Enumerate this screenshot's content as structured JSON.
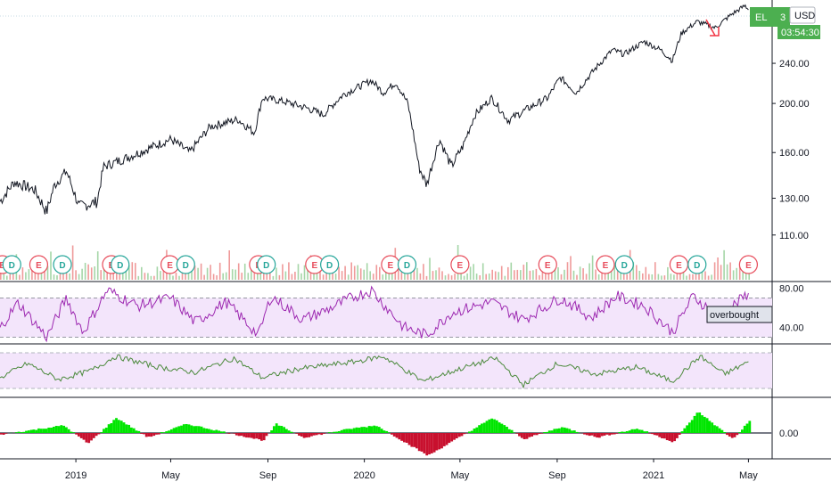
{
  "symbol_tag": "EL",
  "symbol_tag_extra": "3",
  "currency_label": "USD",
  "countdown": "03:54:30",
  "overbought_label": "overbought",
  "colors": {
    "price": "#131722",
    "rsi": "#9c27b0",
    "rsi_band": "#f3e5fb",
    "osc2": "#4c8a3d",
    "up_hist": "#00e600",
    "down_hist": "#c8102e",
    "badge_green": "#4caf50",
    "earnings": "#e74c5b",
    "dividend": "#26a69a",
    "arrow": "#f23645"
  },
  "chart_data": [
    {
      "type": "line",
      "series": [
        {
          "values": [
            {
              "x": "2018-09-27",
              "y": 128
            },
            {
              "x": "2018-10-15",
              "y": 140
            },
            {
              "x": "2018-11-10",
              "y": 135
            },
            {
              "x": "2018-11-25",
              "y": 122
            },
            {
              "x": "2018-12-05",
              "y": 138
            },
            {
              "x": "2018-12-20",
              "y": 147
            },
            {
              "x": "2019-01-05",
              "y": 125
            },
            {
              "x": "2019-01-28",
              "y": 128
            },
            {
              "x": "2019-02-05",
              "y": 150
            },
            {
              "x": "2019-03-10",
              "y": 157
            },
            {
              "x": "2019-04-15",
              "y": 166
            },
            {
              "x": "2019-05-01",
              "y": 170
            },
            {
              "x": "2019-05-25",
              "y": 160
            },
            {
              "x": "2019-06-20",
              "y": 180
            },
            {
              "x": "2019-07-25",
              "y": 186
            },
            {
              "x": "2019-08-15",
              "y": 175
            },
            {
              "x": "2019-08-25",
              "y": 205
            },
            {
              "x": "2019-09-20",
              "y": 202
            },
            {
              "x": "2019-10-20",
              "y": 196
            },
            {
              "x": "2019-11-10",
              "y": 190
            },
            {
              "x": "2019-12-05",
              "y": 208
            },
            {
              "x": "2020-01-10",
              "y": 222
            },
            {
              "x": "2020-01-25",
              "y": 210
            },
            {
              "x": "2020-02-10",
              "y": 220
            },
            {
              "x": "2020-02-25",
              "y": 200
            },
            {
              "x": "2020-03-10",
              "y": 150
            },
            {
              "x": "2020-03-20",
              "y": 138
            },
            {
              "x": "2020-04-05",
              "y": 170
            },
            {
              "x": "2020-04-20",
              "y": 150
            },
            {
              "x": "2020-05-05",
              "y": 165
            },
            {
              "x": "2020-05-20",
              "y": 190
            },
            {
              "x": "2020-06-10",
              "y": 205
            },
            {
              "x": "2020-07-01",
              "y": 185
            },
            {
              "x": "2020-07-25",
              "y": 195
            },
            {
              "x": "2020-08-20",
              "y": 205
            },
            {
              "x": "2020-09-05",
              "y": 225
            },
            {
              "x": "2020-09-25",
              "y": 210
            },
            {
              "x": "2020-10-20",
              "y": 235
            },
            {
              "x": "2020-11-10",
              "y": 255
            },
            {
              "x": "2020-11-25",
              "y": 250
            },
            {
              "x": "2020-12-20",
              "y": 265
            },
            {
              "x": "2021-01-10",
              "y": 255
            },
            {
              "x": "2021-01-25",
              "y": 243
            },
            {
              "x": "2021-02-05",
              "y": 275
            },
            {
              "x": "2021-02-25",
              "y": 290
            },
            {
              "x": "2021-03-20",
              "y": 282
            },
            {
              "x": "2021-04-10",
              "y": 300
            },
            {
              "x": "2021-04-27",
              "y": 312
            },
            {
              "x": "2021-05-01",
              "y": 306
            }
          ]
        }
      ],
      "x_ticks": [
        {
          "x": "2019-01-01",
          "label": "2019"
        },
        {
          "x": "2019-05-01",
          "label": "May"
        },
        {
          "x": "2019-09-01",
          "label": "Sep"
        },
        {
          "x": "2020-01-01",
          "label": "2020"
        },
        {
          "x": "2020-05-01",
          "label": "May"
        },
        {
          "x": "2020-09-01",
          "label": "Sep"
        },
        {
          "x": "2021-01-01",
          "label": "2021"
        },
        {
          "x": "2021-05-01",
          "label": "May"
        }
      ],
      "y_ticks": [
        "110.00",
        "130.00",
        "160.00",
        "200.00",
        "240.00"
      ],
      "log_scale": true,
      "xlim": [
        "2018-09-27",
        "2021-05-31"
      ],
      "ylim": [
        95,
        320
      ]
    },
    {
      "type": "line",
      "series": [
        {
          "values": [
            {
              "x": "2018-09-27",
              "y": 40
            },
            {
              "x": "2018-10-20",
              "y": 65
            },
            {
              "x": "2018-11-25",
              "y": 30
            },
            {
              "x": "2018-12-20",
              "y": 70
            },
            {
              "x": "2019-01-10",
              "y": 35
            },
            {
              "x": "2019-02-10",
              "y": 78
            },
            {
              "x": "2019-03-20",
              "y": 62
            },
            {
              "x": "2019-05-01",
              "y": 70
            },
            {
              "x": "2019-06-01",
              "y": 45
            },
            {
              "x": "2019-07-10",
              "y": 66
            },
            {
              "x": "2019-08-20",
              "y": 32
            },
            {
              "x": "2019-09-05",
              "y": 72
            },
            {
              "x": "2019-10-15",
              "y": 48
            },
            {
              "x": "2019-11-15",
              "y": 58
            },
            {
              "x": "2019-12-15",
              "y": 70
            },
            {
              "x": "2020-01-10",
              "y": 78
            },
            {
              "x": "2020-02-20",
              "y": 40
            },
            {
              "x": "2020-03-20",
              "y": 32
            },
            {
              "x": "2020-04-20",
              "y": 55
            },
            {
              "x": "2020-06-10",
              "y": 66
            },
            {
              "x": "2020-07-20",
              "y": 48
            },
            {
              "x": "2020-09-05",
              "y": 70
            },
            {
              "x": "2020-10-15",
              "y": 50
            },
            {
              "x": "2020-11-15",
              "y": 72
            },
            {
              "x": "2020-12-20",
              "y": 62
            },
            {
              "x": "2021-01-25",
              "y": 35
            },
            {
              "x": "2021-02-20",
              "y": 72
            },
            {
              "x": "2021-03-25",
              "y": 50
            },
            {
              "x": "2021-05-01",
              "y": 75
            }
          ]
        }
      ],
      "y_ticks": [
        "40.00",
        "80.00"
      ],
      "ylim": [
        25,
        85
      ]
    },
    {
      "type": "line",
      "series": [
        {
          "values": [
            {
              "x": "2018-09-27",
              "y": 0.3
            },
            {
              "x": "2018-11-01",
              "y": 0.7
            },
            {
              "x": "2018-12-10",
              "y": 0.25
            },
            {
              "x": "2019-01-20",
              "y": 0.5
            },
            {
              "x": "2019-02-20",
              "y": 0.9
            },
            {
              "x": "2019-04-15",
              "y": 0.6
            },
            {
              "x": "2019-06-01",
              "y": 0.45
            },
            {
              "x": "2019-07-20",
              "y": 0.85
            },
            {
              "x": "2019-08-25",
              "y": 0.3
            },
            {
              "x": "2019-10-10",
              "y": 0.55
            },
            {
              "x": "2019-12-20",
              "y": 0.75
            },
            {
              "x": "2020-01-25",
              "y": 0.9
            },
            {
              "x": "2020-03-15",
              "y": 0.2
            },
            {
              "x": "2020-05-01",
              "y": 0.55
            },
            {
              "x": "2020-06-15",
              "y": 0.85
            },
            {
              "x": "2020-07-20",
              "y": 0.1
            },
            {
              "x": "2020-09-01",
              "y": 0.7
            },
            {
              "x": "2020-10-20",
              "y": 0.4
            },
            {
              "x": "2020-12-10",
              "y": 0.6
            },
            {
              "x": "2021-01-25",
              "y": 0.2
            },
            {
              "x": "2021-03-01",
              "y": 0.9
            },
            {
              "x": "2021-04-01",
              "y": 0.4
            },
            {
              "x": "2021-05-01",
              "y": 0.75
            }
          ]
        }
      ],
      "ylim": [
        0,
        1
      ]
    },
    {
      "type": "bar",
      "series": [
        {
          "values": [
            {
              "x": "2018-09-27",
              "y": -0.1
            },
            {
              "x": "2018-12-15",
              "y": 0.5
            },
            {
              "x": "2019-01-15",
              "y": -0.7
            },
            {
              "x": "2019-02-20",
              "y": 1.0
            },
            {
              "x": "2019-04-01",
              "y": -0.3
            },
            {
              "x": "2019-05-20",
              "y": 0.6
            },
            {
              "x": "2019-08-25",
              "y": -0.5
            },
            {
              "x": "2019-09-10",
              "y": 0.6
            },
            {
              "x": "2019-10-15",
              "y": -0.3
            },
            {
              "x": "2019-12-15",
              "y": 0.3
            },
            {
              "x": "2020-01-15",
              "y": 0.5
            },
            {
              "x": "2020-03-20",
              "y": -1.5
            },
            {
              "x": "2020-06-10",
              "y": 1.0
            },
            {
              "x": "2020-07-20",
              "y": -0.4
            },
            {
              "x": "2020-09-05",
              "y": 0.4
            },
            {
              "x": "2020-10-20",
              "y": -0.3
            },
            {
              "x": "2020-12-10",
              "y": 0.3
            },
            {
              "x": "2021-01-25",
              "y": -0.6
            },
            {
              "x": "2021-02-25",
              "y": 1.4
            },
            {
              "x": "2021-04-10",
              "y": -0.4
            },
            {
              "x": "2021-05-01",
              "y": 0.8
            }
          ]
        }
      ],
      "y_ticks": [
        "0.00"
      ],
      "ylim": [
        -1.8,
        1.8
      ]
    }
  ],
  "events": [
    {
      "x": "2018-09-30",
      "t": "E"
    },
    {
      "x": "2018-10-12",
      "t": "D"
    },
    {
      "x": "2018-11-15",
      "t": "E"
    },
    {
      "x": "2018-12-15",
      "t": "D"
    },
    {
      "x": "2019-02-15",
      "t": "E"
    },
    {
      "x": "2019-02-26",
      "t": "D"
    },
    {
      "x": "2019-04-30",
      "t": "E"
    },
    {
      "x": "2019-05-20",
      "t": "D"
    },
    {
      "x": "2019-08-20",
      "t": "E"
    },
    {
      "x": "2019-08-30",
      "t": "D"
    },
    {
      "x": "2019-10-30",
      "t": "E"
    },
    {
      "x": "2019-11-18",
      "t": "D"
    },
    {
      "x": "2020-02-03",
      "t": "E"
    },
    {
      "x": "2020-02-24",
      "t": "D"
    },
    {
      "x": "2020-05-01",
      "t": "E"
    },
    {
      "x": "2020-08-20",
      "t": "E"
    },
    {
      "x": "2020-11-01",
      "t": "E"
    },
    {
      "x": "2020-11-25",
      "t": "D"
    },
    {
      "x": "2021-02-02",
      "t": "E"
    },
    {
      "x": "2021-02-25",
      "t": "D"
    },
    {
      "x": "2021-05-01",
      "t": "E"
    }
  ]
}
